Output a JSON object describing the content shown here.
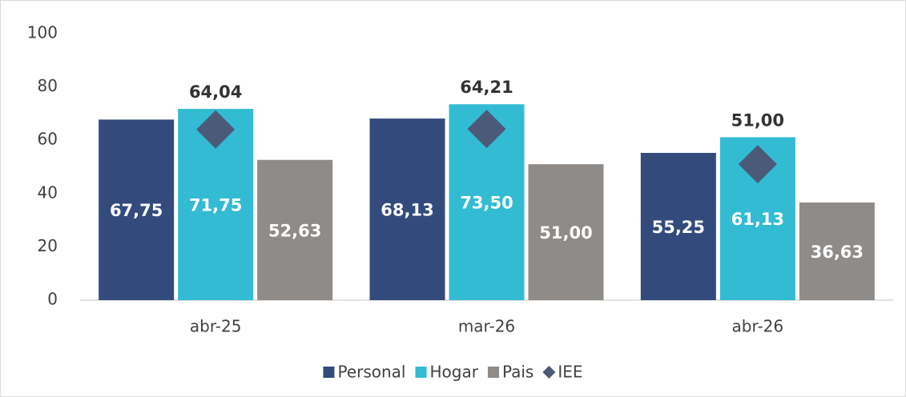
{
  "chart_data": {
    "type": "bar",
    "categories": [
      "abr-25",
      "mar-26",
      "abr-26"
    ],
    "series": [
      {
        "name": "Personal",
        "color": "#334a7d",
        "values": [
          67.75,
          68.13,
          55.25
        ],
        "value_labels": [
          "67,75",
          "68,13",
          "55,25"
        ]
      },
      {
        "name": "Hogar",
        "color": "#33bbd4",
        "values": [
          71.75,
          73.5,
          61.13
        ],
        "value_labels": [
          "71,75",
          "73,50",
          "61,13"
        ]
      },
      {
        "name": "Pais",
        "color": "#8e8b89",
        "values": [
          52.63,
          51,
          36.63
        ],
        "value_labels": [
          "52,63",
          "51,00",
          "36,63"
        ]
      },
      {
        "name": "IEE",
        "color": "#4a5a78",
        "marker": "diamond",
        "values": [
          64.04,
          64.21,
          51
        ],
        "value_labels": [
          "64,04",
          "64,21",
          "51,00"
        ]
      }
    ],
    "ylim": [
      0,
      100
    ],
    "yticks": [
      0,
      20,
      40,
      60,
      80,
      100
    ],
    "grid": false,
    "legend": "bottom"
  }
}
